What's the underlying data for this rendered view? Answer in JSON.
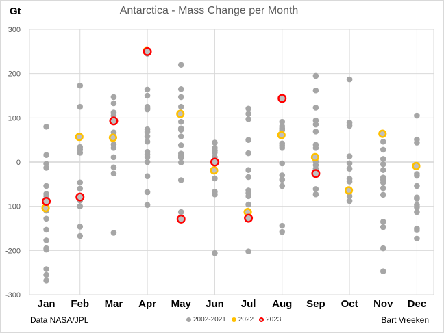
{
  "chart_data": {
    "type": "scatter",
    "title": "Antarctica - Mass Change per Month",
    "ylabel": "Gt",
    "xlabel": "",
    "ylim": [
      -300,
      300
    ],
    "yticks": [
      300,
      200,
      100,
      0,
      -100,
      -200,
      -300
    ],
    "categories": [
      "Jan",
      "Feb",
      "Mar",
      "Apr",
      "May",
      "Jun",
      "Jul",
      "Aug",
      "Sep",
      "Oct",
      "Nov",
      "Dec"
    ],
    "grid": true,
    "legend_position": "bottom-center",
    "series": [
      {
        "name": "2002-2021",
        "color": "#a6a6a6",
        "values": [
          [
            80,
            16,
            -4,
            -13,
            -54,
            -72,
            -77,
            -110,
            -128,
            -153,
            -177,
            -195,
            -198,
            -242,
            -255,
            -268
          ],
          [
            173,
            125,
            34,
            28,
            21,
            -46,
            -60,
            -87,
            -100,
            -146,
            -167
          ],
          [
            147,
            133,
            112,
            105,
            67,
            40,
            32,
            11,
            -12,
            -26,
            -160
          ],
          [
            245,
            164,
            150,
            125,
            122,
            119,
            74,
            68,
            58,
            46,
            23,
            17,
            11,
            0,
            -32,
            -68,
            -97
          ],
          [
            220,
            165,
            147,
            125,
            91,
            76,
            73,
            58,
            38,
            19,
            14,
            10,
            -1,
            -41,
            -113
          ],
          [
            44,
            32,
            26,
            22,
            11,
            -37,
            -67,
            -73,
            -206
          ],
          [
            121,
            109,
            97,
            50,
            20,
            -18,
            -34,
            -64,
            -70,
            -77,
            -96,
            -202
          ],
          [
            91,
            81,
            76,
            72,
            42,
            37,
            32,
            -3,
            -30,
            -40,
            -54,
            -144,
            -158
          ],
          [
            195,
            162,
            123,
            94,
            85,
            69,
            39,
            32,
            1,
            -7,
            -15,
            -61,
            -73
          ],
          [
            187,
            89,
            82,
            13,
            -3,
            -15,
            -38,
            -44,
            -77,
            -88
          ],
          [
            46,
            28,
            7,
            -5,
            -18,
            -35,
            -40,
            -46,
            -59,
            -74,
            -135,
            -147,
            -195,
            -247
          ],
          [
            105,
            51,
            44,
            -27,
            -31,
            -54,
            -80,
            -83,
            -97,
            -102,
            -113,
            -150,
            -154,
            -173
          ]
        ]
      },
      {
        "name": "2022",
        "color": "#ffc000",
        "values": [
          -104,
          57,
          55,
          251,
          109,
          -19,
          -113,
          61,
          11,
          -64,
          64,
          -9
        ]
      },
      {
        "name": "2023",
        "color": "#ff0000",
        "values": [
          -89,
          -79,
          93,
          250,
          -129,
          0,
          -127,
          144,
          -26,
          null,
          null,
          null
        ]
      }
    ]
  },
  "footer": {
    "source": "Data NASA/JPL",
    "author": "Bart Vreeken"
  }
}
